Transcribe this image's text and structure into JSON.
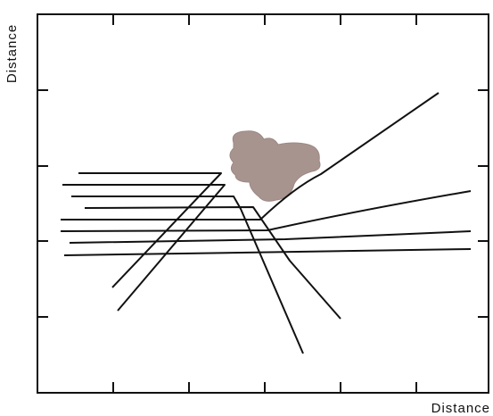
{
  "x_axis_label": "Distance",
  "y_axis_label": "Distance"
}
